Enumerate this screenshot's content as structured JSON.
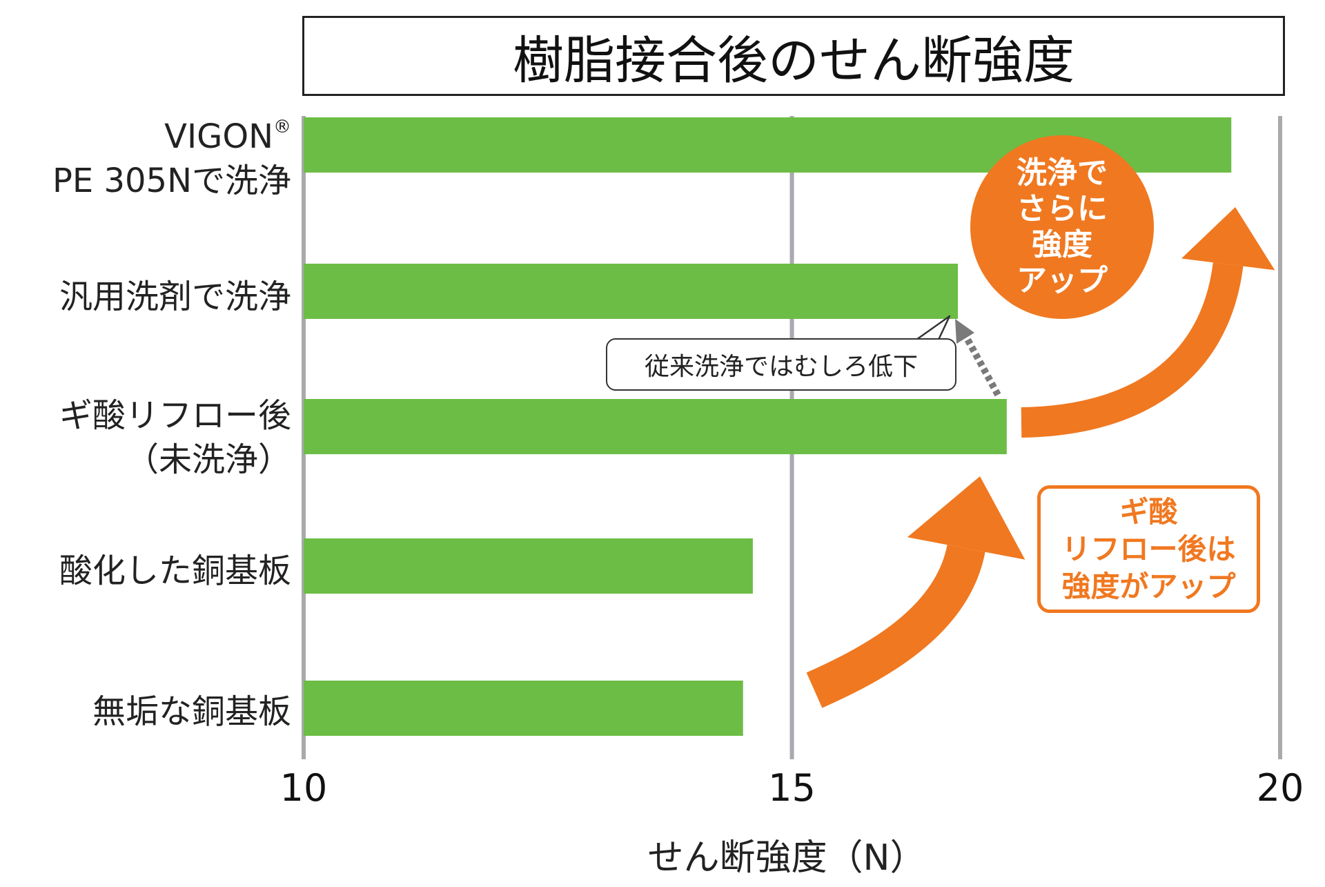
{
  "chart_data": {
    "type": "bar",
    "orientation": "horizontal",
    "title": "樹脂接合後のせん断強度",
    "xlabel": "せん断強度（N）",
    "ylabel": "",
    "xlim": [
      10,
      20
    ],
    "ticks": [
      "10",
      "15",
      "20"
    ],
    "grid": "vertical",
    "categories": [
      {
        "line1": "VIGON",
        "mark": "®",
        "line2": "PE 305Nで洗浄"
      },
      {
        "line1": "汎用洗剤で洗浄",
        "mark": "",
        "line2": ""
      },
      {
        "line1": "ギ酸リフロー後",
        "mark": "",
        "line2": "（未洗浄）"
      },
      {
        "line1": "酸化した銅基板",
        "mark": "",
        "line2": ""
      },
      {
        "line1": "無垢な銅基板",
        "mark": "",
        "line2": ""
      }
    ],
    "values": [
      19.5,
      16.7,
      17.2,
      14.6,
      14.5
    ],
    "bar_color": "#6cbd45",
    "annotations": {
      "circle_badge": [
        "洗浄で",
        "さらに",
        "強度",
        "アップ"
      ],
      "box_badge": [
        "ギ酸",
        "リフロー後は",
        "強度がアップ"
      ],
      "callout": "従来洗浄ではむしろ低下",
      "accent_color": "#f07820"
    }
  }
}
